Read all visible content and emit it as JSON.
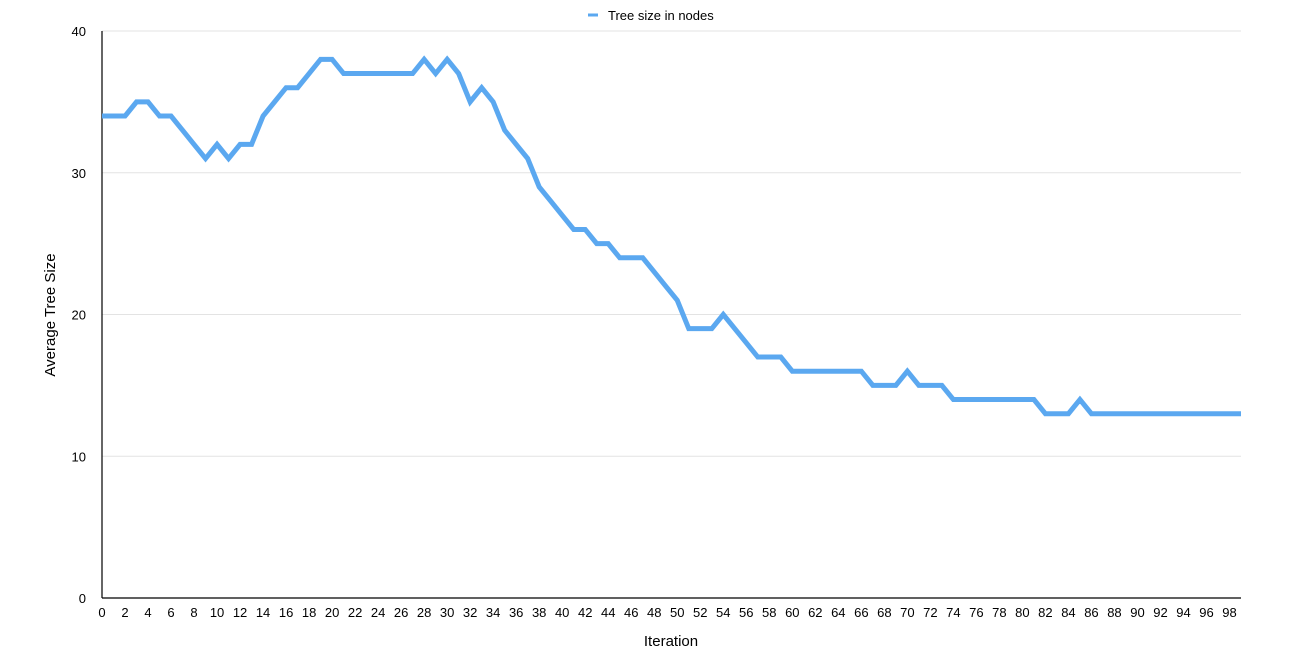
{
  "chart_data": {
    "type": "line",
    "title": "",
    "xlabel": "Iteration",
    "ylabel": "Average Tree Size",
    "xlim": [
      0,
      99
    ],
    "ylim": [
      0,
      40
    ],
    "yticks": [
      0,
      10,
      20,
      30,
      40
    ],
    "xtick_step": 2,
    "grid": "horizontal",
    "legend": "top-center",
    "colors": {
      "series": "#5BA8F0",
      "grid": "#e3e3e3",
      "axis": "#000000"
    },
    "x": [
      0,
      1,
      2,
      3,
      4,
      5,
      6,
      7,
      8,
      9,
      10,
      11,
      12,
      13,
      14,
      15,
      16,
      17,
      18,
      19,
      20,
      21,
      22,
      23,
      24,
      25,
      26,
      27,
      28,
      29,
      30,
      31,
      32,
      33,
      34,
      35,
      36,
      37,
      38,
      39,
      40,
      41,
      42,
      43,
      44,
      45,
      46,
      47,
      48,
      49,
      50,
      51,
      52,
      53,
      54,
      55,
      56,
      57,
      58,
      59,
      60,
      61,
      62,
      63,
      64,
      65,
      66,
      67,
      68,
      69,
      70,
      71,
      72,
      73,
      74,
      75,
      76,
      77,
      78,
      79,
      80,
      81,
      82,
      83,
      84,
      85,
      86,
      87,
      88,
      89,
      90,
      91,
      92,
      93,
      94,
      95,
      96,
      97,
      98,
      99
    ],
    "series": [
      {
        "name": "Tree size in nodes",
        "values": [
          34,
          34,
          34,
          35,
          35,
          34,
          34,
          33,
          32,
          31,
          32,
          31,
          32,
          32,
          34,
          35,
          36,
          36,
          37,
          38,
          38,
          37,
          37,
          37,
          37,
          37,
          37,
          37,
          38,
          37,
          38,
          37,
          35,
          36,
          35,
          33,
          32,
          31,
          29,
          28,
          27,
          26,
          26,
          25,
          25,
          24,
          24,
          24,
          23,
          22,
          21,
          19,
          19,
          19,
          20,
          19,
          18,
          17,
          17,
          17,
          16,
          16,
          16,
          16,
          16,
          16,
          16,
          15,
          15,
          15,
          16,
          15,
          15,
          15,
          14,
          14,
          14,
          14,
          14,
          14,
          14,
          14,
          13,
          13,
          13,
          14,
          13,
          13,
          13,
          13,
          13,
          13,
          13,
          13,
          13,
          13,
          13,
          13,
          13,
          13
        ]
      }
    ]
  }
}
